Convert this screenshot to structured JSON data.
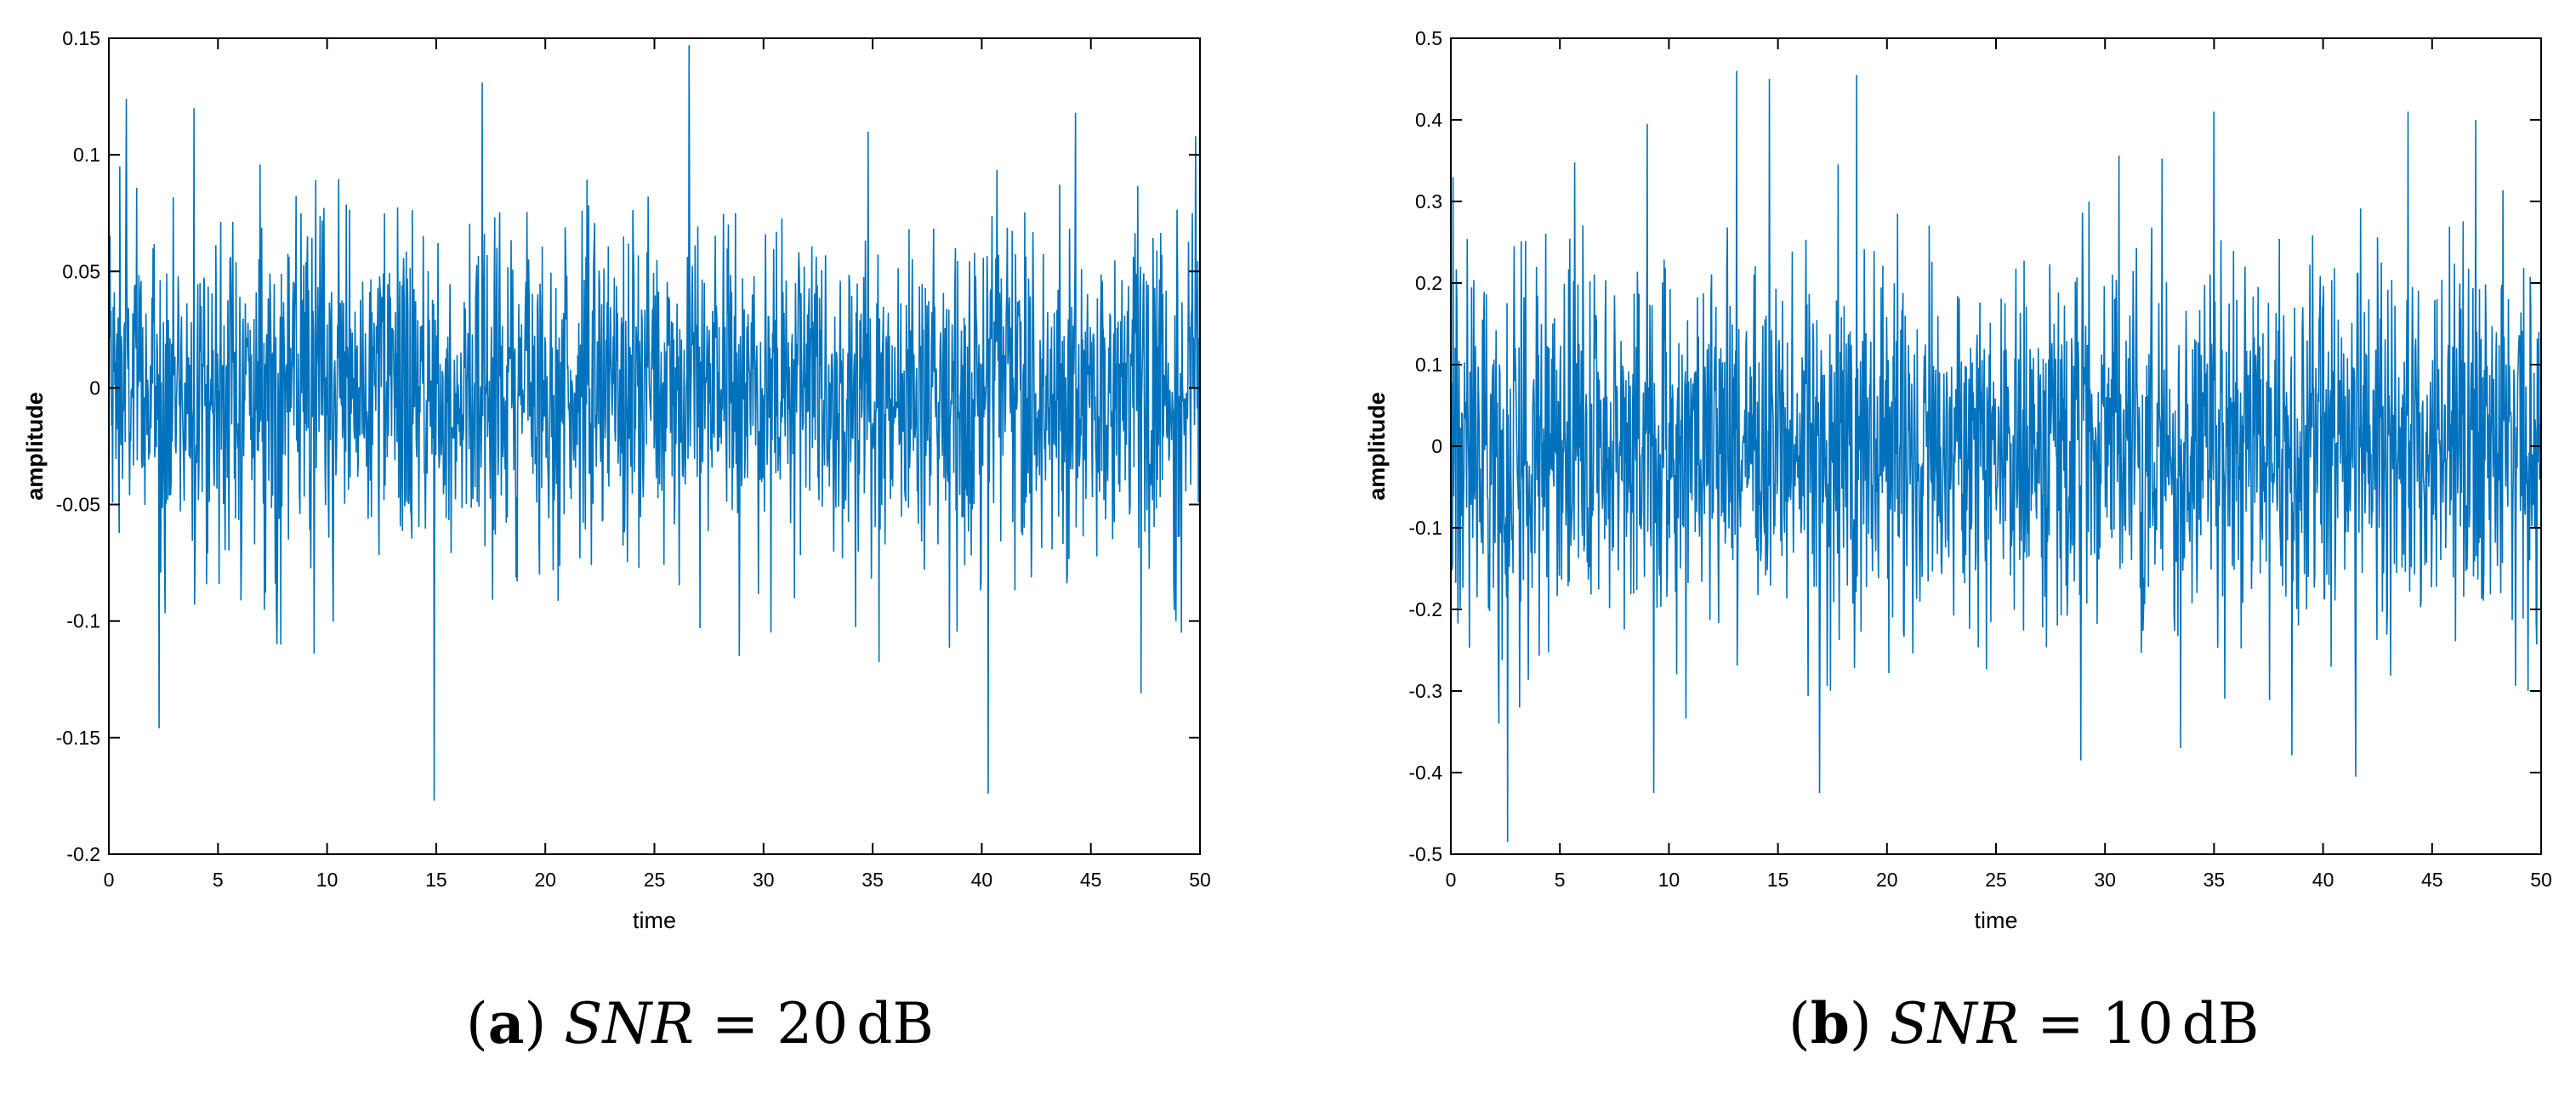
{
  "chart_data": [
    {
      "type": "line",
      "panel": "a",
      "xlabel": "time",
      "ylabel": "amplitude",
      "xlim": [
        0,
        50
      ],
      "ylim": [
        -0.2,
        0.15
      ],
      "xticks": [
        0,
        5,
        10,
        15,
        20,
        25,
        30,
        35,
        40,
        45,
        50
      ],
      "xtick_labels": [
        "0",
        "5",
        "10",
        "15",
        "20",
        "25",
        "30",
        "35",
        "40",
        "45",
        "50"
      ],
      "yticks": [
        -0.2,
        -0.15,
        -0.1,
        -0.05,
        0,
        0.05,
        0.1,
        0.15
      ],
      "ytick_labels": [
        "-0.2",
        "-0.15",
        "-0.1",
        "-0.05",
        "0",
        "0.05",
        "0.1",
        "0.15"
      ],
      "grid": false,
      "line_color": "#0072BD",
      "noise_std": 0.035,
      "num_points": 2000,
      "extremes": [
        {
          "x": 0.5,
          "y": 0.095
        },
        {
          "x": 0.8,
          "y": 0.124
        },
        {
          "x": 2.3,
          "y": -0.146
        },
        {
          "x": 3.9,
          "y": 0.12
        },
        {
          "x": 7.7,
          "y": -0.11
        },
        {
          "x": 9.4,
          "y": -0.114
        },
        {
          "x": 14.9,
          "y": -0.177
        },
        {
          "x": 17.1,
          "y": 0.131
        },
        {
          "x": 26.6,
          "y": 0.147
        },
        {
          "x": 28.9,
          "y": -0.115
        },
        {
          "x": 34.8,
          "y": 0.11
        },
        {
          "x": 40.3,
          "y": -0.174
        },
        {
          "x": 44.3,
          "y": 0.118
        },
        {
          "x": 47.3,
          "y": -0.131
        },
        {
          "x": 48.9,
          "y": -0.1
        },
        {
          "x": 49.8,
          "y": 0.108
        }
      ]
    },
    {
      "type": "line",
      "panel": "b",
      "xlabel": "time",
      "ylabel": "amplitude",
      "xlim": [
        0,
        50
      ],
      "ylim": [
        -0.5,
        0.5
      ],
      "xticks": [
        0,
        5,
        10,
        15,
        20,
        25,
        30,
        35,
        40,
        45,
        50
      ],
      "xtick_labels": [
        "0",
        "5",
        "10",
        "15",
        "20",
        "25",
        "30",
        "35",
        "40",
        "45",
        "50"
      ],
      "yticks": [
        -0.5,
        -0.4,
        -0.3,
        -0.2,
        -0.1,
        0,
        0.1,
        0.2,
        0.3,
        0.4,
        0.5
      ],
      "ytick_labels": [
        "-0.5",
        "-0.4",
        "-0.3",
        "-0.2",
        "-0.1",
        "0",
        "0.1",
        "0.2",
        "0.3",
        "0.4",
        "0.5"
      ],
      "grid": false,
      "line_color": "#0072BD",
      "noise_std": 0.11,
      "num_points": 2000,
      "extremes": [
        {
          "x": 0.1,
          "y": 0.33
        },
        {
          "x": 2.6,
          "y": -0.485
        },
        {
          "x": 2.2,
          "y": -0.34
        },
        {
          "x": 9.3,
          "y": -0.425
        },
        {
          "x": 9.0,
          "y": 0.395
        },
        {
          "x": 13.1,
          "y": 0.46
        },
        {
          "x": 14.6,
          "y": 0.45
        },
        {
          "x": 16.9,
          "y": -0.425
        },
        {
          "x": 18.6,
          "y": 0.455
        },
        {
          "x": 28.9,
          "y": -0.385
        },
        {
          "x": 35.0,
          "y": 0.41
        },
        {
          "x": 41.5,
          "y": -0.405
        },
        {
          "x": 43.9,
          "y": 0.41
        },
        {
          "x": 47.0,
          "y": 0.4
        },
        {
          "x": 49.4,
          "y": -0.3
        }
      ]
    }
  ],
  "captions": [
    {
      "letter": "a",
      "lhs": "SNR",
      "eq": "=",
      "value": "20",
      "unit": "dB"
    },
    {
      "letter": "b",
      "lhs": "SNR",
      "eq": "=",
      "value": "10",
      "unit": "dB"
    }
  ]
}
